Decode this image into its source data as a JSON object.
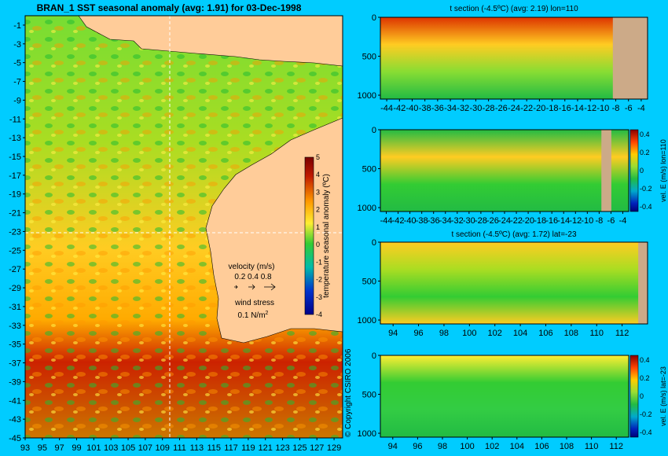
{
  "chart_data": [
    {
      "type": "heatmap",
      "title": "BRAN_1  SST seasonal anomaly  (avg: 1.91) for 03-Dec-1998",
      "x_ticks": [
        "93",
        "95",
        "97",
        "99",
        "101",
        "103",
        "105",
        "107",
        "109",
        "111",
        "113",
        "115",
        "117",
        "119",
        "121",
        "123",
        "125",
        "127",
        "129"
      ],
      "y_ticks": [
        "-1",
        "-3",
        "-5",
        "-7",
        "-9",
        "-11",
        "-13",
        "-15",
        "-17",
        "-19",
        "-21",
        "-23",
        "-25",
        "-27",
        "-29",
        "-31",
        "-33",
        "-35",
        "-37",
        "-39",
        "-41",
        "-43",
        "-45"
      ],
      "xlim": [
        93,
        130
      ],
      "ylim": [
        -45,
        0
      ],
      "colorbar": {
        "label": "temperature seasonal anomaly (ºC)",
        "ticks": [
          "5",
          "4",
          "3",
          "2",
          "1",
          "0",
          "-1",
          "-2",
          "-3",
          "-4"
        ],
        "range": [
          -4,
          5
        ]
      },
      "crosshair": {
        "lon": 110,
        "lat": -23
      },
      "legend": {
        "velocity_title": "velocity (m/s)",
        "velocity_values": "0.2 0.4 0.8",
        "wind_title": "wind stress",
        "wind_value": "0.1 N/m",
        "wind_unit_exp": "2"
      },
      "copyright": "© Copyright CSIRO 2006"
    },
    {
      "type": "heatmap",
      "title": "t section (-4.5ºC)  (avg: 2.19) lon=110",
      "x_ticks": [
        "-44",
        "-42",
        "-40",
        "-38",
        "-36",
        "-34",
        "-32",
        "-30",
        "-28",
        "-26",
        "-24",
        "-22",
        "-20",
        "-18",
        "-16",
        "-14",
        "-12",
        "-10",
        "-8",
        "-6",
        "-4"
      ],
      "y_ticks": [
        "0",
        "500",
        "1000"
      ],
      "xlim": [
        -45,
        -3
      ],
      "ylim": [
        1050,
        0
      ]
    },
    {
      "type": "heatmap",
      "title": "",
      "x_ticks": [
        "-44",
        "-42",
        "-40",
        "-38",
        "-36",
        "-34",
        "-32",
        "-30",
        "-28",
        "-26",
        "-24",
        "-22",
        "-20",
        "-18",
        "-16",
        "-14",
        "-12",
        "-10",
        "-8",
        "-6",
        "-4"
      ],
      "y_ticks": [
        "0",
        "500",
        "1000"
      ],
      "xlim": [
        -45,
        -3
      ],
      "ylim": [
        1050,
        0
      ],
      "colorbar": {
        "label": "vel. E (m/s) lon=110",
        "ticks": [
          "0.4",
          "0.2",
          "0",
          "-0.2",
          "-0.4"
        ],
        "range": [
          -0.45,
          0.45
        ]
      }
    },
    {
      "type": "heatmap",
      "title": "t section (-4.5ºC)  (avg: 1.72) lat=-23",
      "x_ticks": [
        "94",
        "96",
        "98",
        "100",
        "102",
        "104",
        "106",
        "108",
        "110",
        "112"
      ],
      "y_ticks": [
        "0",
        "500",
        "1000"
      ],
      "xlim": [
        93,
        114
      ],
      "ylim": [
        1050,
        0
      ]
    },
    {
      "type": "heatmap",
      "title": "",
      "x_ticks": [
        "94",
        "96",
        "98",
        "100",
        "102",
        "104",
        "106",
        "108",
        "110",
        "112"
      ],
      "y_ticks": [
        "0",
        "500",
        "1000"
      ],
      "xlim": [
        93,
        113
      ],
      "ylim": [
        1050,
        0
      ],
      "colorbar": {
        "label": "vel. E (m/s) lat=-23",
        "ticks": [
          "0.4",
          "0.2",
          "0",
          "-0.2",
          "-0.4"
        ],
        "range": [
          -0.45,
          0.45
        ]
      }
    }
  ]
}
